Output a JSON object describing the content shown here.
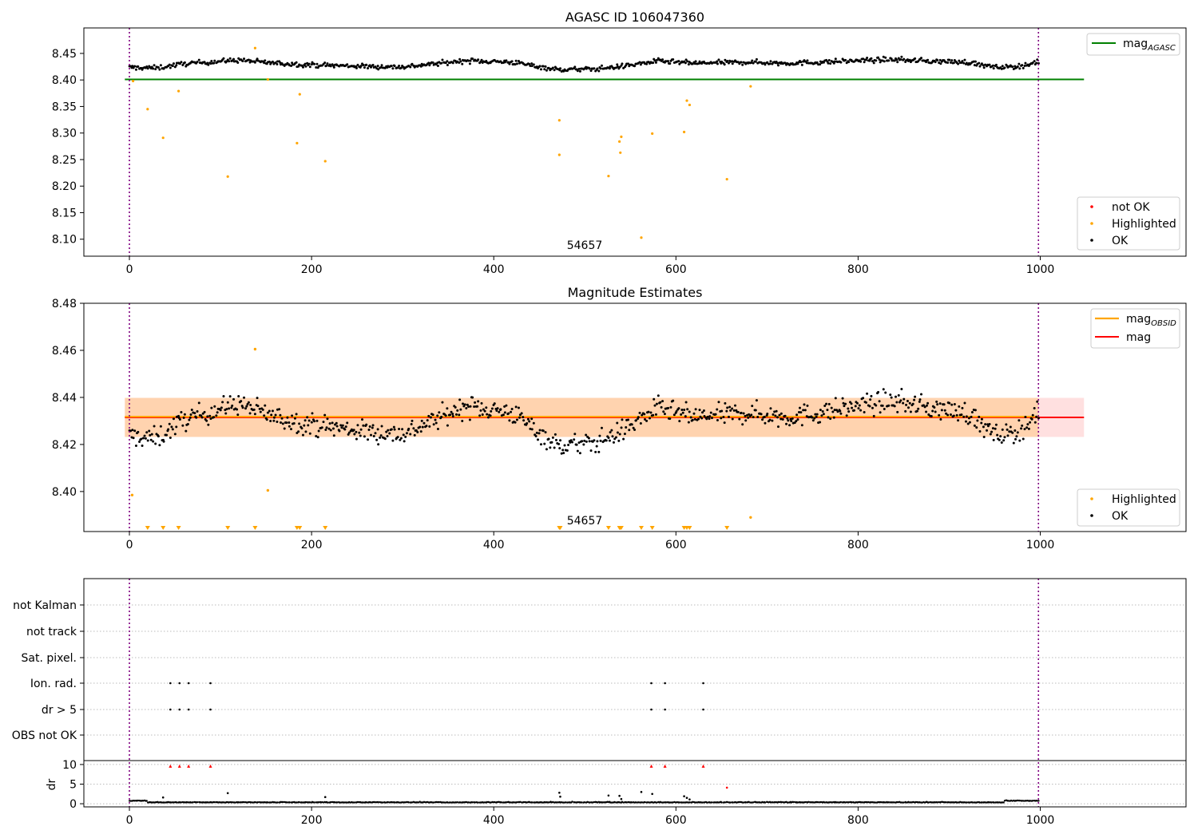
{
  "colors": {
    "ok": "#000000",
    "highlighted": "#ffa500",
    "not_ok": "#ff0000",
    "agasc_line": "#008000",
    "obsid_line": "#ffa500",
    "mag_line": "#ff0000",
    "band_red": "#ff0000",
    "band_orange": "#ffa500",
    "time_marker": "#800080",
    "flag_grid": "#bbbbbb"
  },
  "chart_data": [
    {
      "type": "scatter",
      "title": "AGASC ID 106047360",
      "xlim": [
        -50,
        1160
      ],
      "ylim": [
        8.068,
        8.498
      ],
      "x_ticks": [
        0,
        200,
        400,
        600,
        800,
        1000
      ],
      "x_tick_labels": [
        "0",
        "200",
        "400",
        "600",
        "800",
        "1000"
      ],
      "y_ticks": [
        8.1,
        8.15,
        8.2,
        8.25,
        8.3,
        8.35,
        8.4,
        8.45
      ],
      "y_tick_labels": [
        "8.10",
        "8.15",
        "8.20",
        "8.25",
        "8.30",
        "8.35",
        "8.40",
        "8.45"
      ],
      "grid": false,
      "annotation": "54657",
      "time_markers": [
        0,
        998
      ],
      "reference_line": {
        "name": "mag_AGASC",
        "y": 8.401,
        "x_range": [
          -5,
          1048
        ]
      },
      "legend_lines": [
        {
          "label": "mag",
          "subscript": "AGASC",
          "color_key": "agasc_line",
          "position": "top-right"
        }
      ],
      "legend_points": [
        {
          "label": "not OK",
          "color_key": "not_ok"
        },
        {
          "label": "Highlighted",
          "color_key": "highlighted"
        },
        {
          "label": "OK",
          "color_key": "ok"
        }
      ],
      "legend_points_position": "bottom-right",
      "ok_series": {
        "name": "OK",
        "x_start": 0,
        "x_end": 998,
        "count": 840,
        "baseline": 8.4315
      },
      "highlighted": [
        {
          "x": 4,
          "y": 8.398
        },
        {
          "x": 20,
          "y": 8.345
        },
        {
          "x": 37,
          "y": 8.291
        },
        {
          "x": 54,
          "y": 8.379
        },
        {
          "x": 108,
          "y": 8.218
        },
        {
          "x": 138,
          "y": 8.46
        },
        {
          "x": 152,
          "y": 8.401
        },
        {
          "x": 184,
          "y": 8.281
        },
        {
          "x": 187,
          "y": 8.373
        },
        {
          "x": 215,
          "y": 8.247
        },
        {
          "x": 472,
          "y": 8.324
        },
        {
          "x": 472,
          "y": 8.259
        },
        {
          "x": 526,
          "y": 8.219
        },
        {
          "x": 538,
          "y": 8.284
        },
        {
          "x": 539,
          "y": 8.263
        },
        {
          "x": 540,
          "y": 8.293
        },
        {
          "x": 562,
          "y": 8.103
        },
        {
          "x": 574,
          "y": 8.299
        },
        {
          "x": 609,
          "y": 8.302
        },
        {
          "x": 612,
          "y": 8.361
        },
        {
          "x": 615,
          "y": 8.353
        },
        {
          "x": 656,
          "y": 8.213
        },
        {
          "x": 682,
          "y": 8.388
        }
      ]
    },
    {
      "type": "scatter",
      "title": "Magnitude Estimates",
      "xlim": [
        -50,
        1160
      ],
      "ylim": [
        8.383,
        8.48
      ],
      "x_ticks": [
        0,
        200,
        400,
        600,
        800,
        1000
      ],
      "x_tick_labels": [
        "0",
        "200",
        "400",
        "600",
        "800",
        "1000"
      ],
      "y_ticks": [
        8.4,
        8.42,
        8.44,
        8.46,
        8.48
      ],
      "y_tick_labels": [
        "8.40",
        "8.42",
        "8.44",
        "8.46",
        "8.48"
      ],
      "grid": false,
      "annotation": "54657",
      "time_markers": [
        0,
        998
      ],
      "mag": 8.4315,
      "mag_band": [
        8.4232,
        8.4398
      ],
      "mag_obsid": 8.4318,
      "obsid_band": [
        8.4232,
        8.4398
      ],
      "line_x_range": [
        -5,
        1048
      ],
      "legend_lines": [
        {
          "label": "mag",
          "subscript": "OBSID",
          "color_key": "obsid_line"
        },
        {
          "label": "mag",
          "subscript": "",
          "color_key": "mag_line"
        }
      ],
      "legend_lines_position": "top-right",
      "legend_points": [
        {
          "label": "Highlighted",
          "color_key": "highlighted"
        },
        {
          "label": "OK",
          "color_key": "ok"
        }
      ],
      "legend_points_position": "bottom-right",
      "ok_series": {
        "name": "OK",
        "x_start": 0,
        "x_end": 998,
        "count": 840,
        "baseline": 8.4315
      },
      "highlighted_in_range": [
        {
          "x": 3,
          "y": 8.3985
        },
        {
          "x": 138,
          "y": 8.4605
        },
        {
          "x": 152,
          "y": 8.4005
        },
        {
          "x": 682,
          "y": 8.389
        }
      ],
      "highlighted_below_range_x": [
        20,
        37,
        54,
        108,
        138,
        184,
        187,
        215,
        472,
        473,
        526,
        538,
        539,
        540,
        562,
        574,
        609,
        612,
        615,
        656
      ]
    },
    {
      "type": "scatter",
      "xlim": [
        -50,
        1160
      ],
      "x_ticks": [
        0,
        200,
        400,
        600,
        800,
        1000
      ],
      "x_tick_labels": [
        "0",
        "200",
        "400",
        "600",
        "800",
        "1000"
      ],
      "time_markers": [
        0,
        998
      ],
      "flag_rows": [
        "not Kalman",
        "not track",
        "Sat. pixel.",
        "Ion. rad.",
        "dr > 5",
        "OBS not OK"
      ],
      "flag_points": {
        "Ion. rad.": [
          45,
          55,
          65,
          89,
          573,
          588,
          630
        ],
        "dr > 5": [
          45,
          55,
          65,
          89,
          573,
          588,
          630
        ]
      },
      "dr_panel": {
        "ylabel": "dr",
        "ylim": [
          -0.8,
          11
        ],
        "y_ticks": [
          0,
          5,
          10
        ],
        "y_tick_labels": [
          "0",
          "5",
          "10"
        ],
        "clipped_above_x": [
          45,
          55,
          65,
          89,
          573,
          588,
          630
        ],
        "outliers": [
          {
            "x": 37,
            "y": 1.6
          },
          {
            "x": 108,
            "y": 2.7
          },
          {
            "x": 215,
            "y": 1.7
          },
          {
            "x": 472,
            "y": 2.8
          },
          {
            "x": 473,
            "y": 1.8
          },
          {
            "x": 526,
            "y": 2.1
          },
          {
            "x": 538,
            "y": 2.0
          },
          {
            "x": 540,
            "y": 1.2
          },
          {
            "x": 562,
            "y": 3.0
          },
          {
            "x": 574,
            "y": 2.5
          },
          {
            "x": 609,
            "y": 1.9
          },
          {
            "x": 612,
            "y": 1.5
          },
          {
            "x": 615,
            "y": 1.1
          },
          {
            "x": 656,
            "y": 4.1
          }
        ]
      }
    }
  ]
}
